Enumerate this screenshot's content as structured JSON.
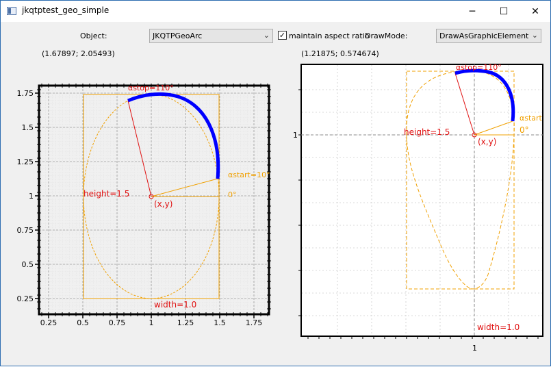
{
  "window": {
    "title": "jkqtptest_geo_simple",
    "minimize": "─",
    "maximize": "☐",
    "close": "✕"
  },
  "toolbar": {
    "object_label": "Object:",
    "object_value": "JKQTPGeoArc",
    "aspect_label": "maintain aspect ratio",
    "aspect_checked": "✓",
    "drawmode_label": "DrawMode:",
    "drawmode_value": "DrawAsGraphicElement"
  },
  "left_plot": {
    "coord_readout": "(1.67897; 2.05493)",
    "x_ticks": [
      "0.25",
      "0.5",
      "0.75",
      "1",
      "1.25",
      "1.5",
      "1.75"
    ],
    "y_ticks": [
      "0.25",
      "0.5",
      "0.75",
      "1",
      "1.25",
      "1.5",
      "1.75"
    ],
    "labels": {
      "alpha_stop": "αstop=110°",
      "alpha_start": "αstart=10°",
      "zero_deg": "0°",
      "height": "height=1.5",
      "width": "width=1.0",
      "xy": "(x,y)"
    }
  },
  "right_plot": {
    "coord_readout": "(1.21875; 0.574674)",
    "x_ticks": [
      "1"
    ],
    "y_ticks": [
      "1"
    ],
    "labels": {
      "alpha_stop": "αstop=110°",
      "alpha_start": "αstart",
      "zero_deg": "0°",
      "height": "height=1.5",
      "width": "width=1.0",
      "xy": "(x,y)"
    }
  },
  "colors": {
    "orange": "#f0a000",
    "red": "#e01010",
    "blue": "#0000ff",
    "grid": "#c8c8c8"
  },
  "chart_data": {
    "type": "scatter",
    "title": "",
    "shape": "arc",
    "center": [
      1,
      1
    ],
    "width": 1.0,
    "height": 1.5,
    "angle_start_deg": 10,
    "angle_stop_deg": 110,
    "xlim": [
      0.15,
      1.85
    ],
    "ylim": [
      0.15,
      1.85
    ]
  }
}
